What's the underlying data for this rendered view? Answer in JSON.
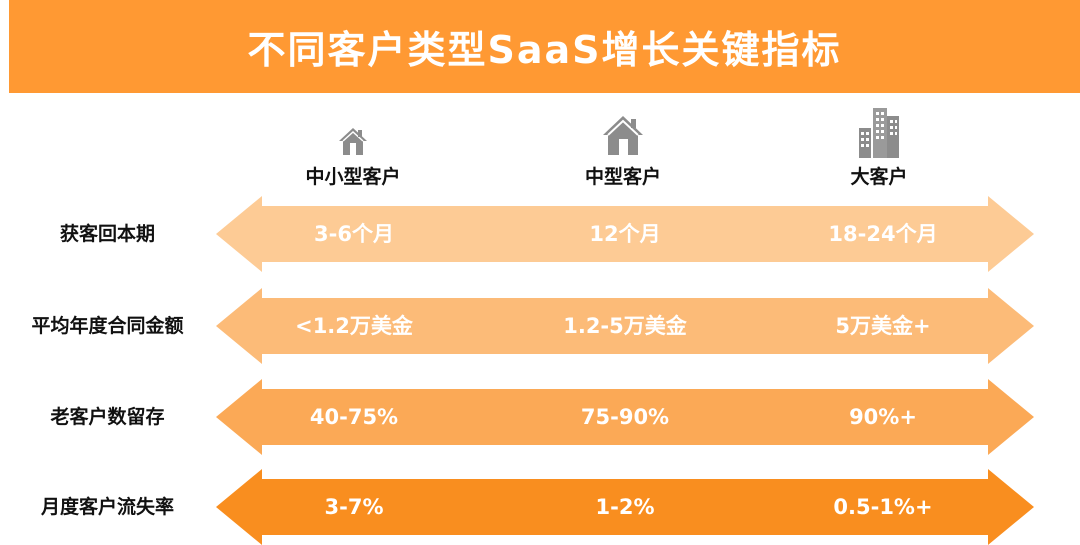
{
  "title": "不同客户类型SaaS增长关键指标",
  "colors": {
    "header": "#FF9933",
    "row_colors": [
      "#FDCB95",
      "#FCBB78",
      "#FBA956",
      "#F98E1F"
    ],
    "icon": "#8C8C8C"
  },
  "columns": [
    {
      "label": "中小型客户",
      "icon": "small-house-icon"
    },
    {
      "label": "中型客户",
      "icon": "house-icon"
    },
    {
      "label": "大客户",
      "icon": "office-building-icon"
    }
  ],
  "rows": [
    {
      "label": "获客回本期",
      "values": [
        "3-6个月",
        "12个月",
        "18-24个月"
      ]
    },
    {
      "label": "平均年度合同金额",
      "values": [
        "<1.2万美金",
        "1.2-5万美金",
        "5万美金+"
      ]
    },
    {
      "label": "老客户数留存",
      "values": [
        "40-75%",
        "75-90%",
        "90%+"
      ]
    },
    {
      "label": "月度客户流失率",
      "values": [
        "3-7%",
        "1-2%",
        "0.5-1%+"
      ]
    }
  ]
}
